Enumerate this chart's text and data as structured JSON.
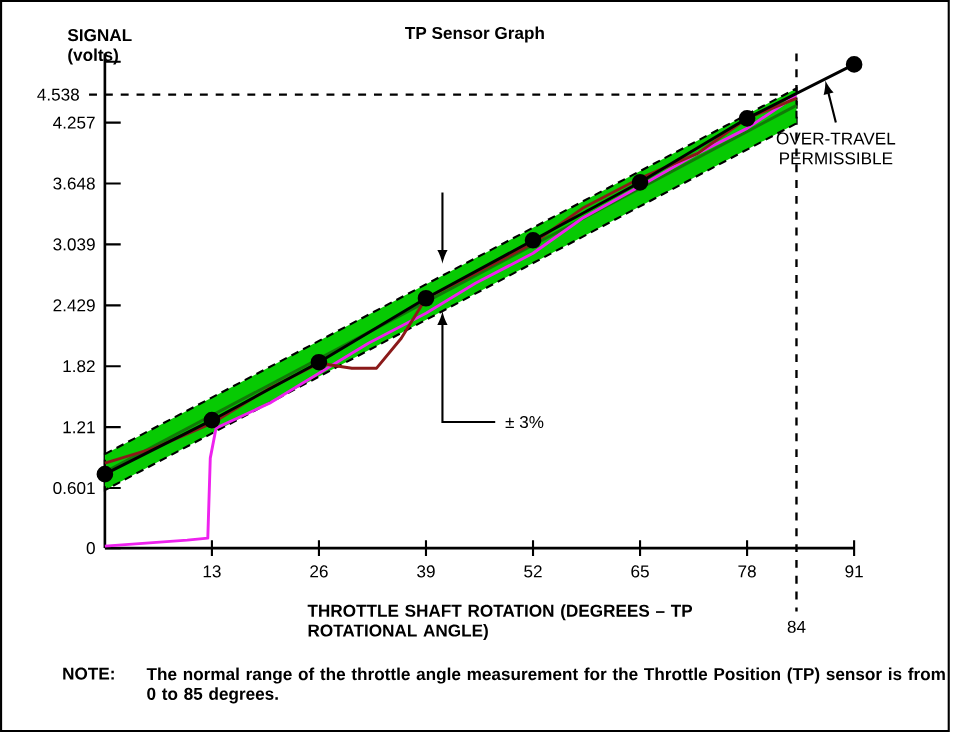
{
  "chart_data": {
    "type": "line",
    "title": "TP Sensor Graph",
    "xlabel": "THROTTLE SHAFT ROTATION (DEGREES – TP ROTATIONAL ANGLE)",
    "xlim": [
      0,
      91
    ],
    "ylim": [
      0,
      4.95
    ],
    "xticks": [
      13,
      26,
      39,
      52,
      65,
      78,
      91
    ],
    "yticks": [
      0,
      0.601,
      1.21,
      1.82,
      2.429,
      3.039,
      3.648,
      4.257,
      {
        "value": 4.866,
        "label": null
      }
    ],
    "ref_lines": [
      {
        "axis": "y",
        "value": 4.538,
        "label": "4.538",
        "line_style": "dashed"
      },
      {
        "axis": "x",
        "value": 84,
        "label": "84",
        "line_style": "dashed"
      }
    ],
    "series": [
      {
        "color": "#117a08",
        "x": [
          0,
          84
        ],
        "values": [
          0.76,
          4.43
        ],
        "lower": [
          0.58,
          4.25
        ],
        "upper": [
          0.94,
          4.6
        ]
      },
      {
        "color": "#ee22ee",
        "x": [
          0,
          5,
          10,
          12.5,
          12.8,
          13.5,
          20,
          26,
          32,
          39,
          45,
          52,
          58,
          65,
          72,
          78,
          84
        ],
        "values": [
          0.02,
          0.05,
          0.08,
          0.1,
          0.9,
          1.2,
          1.45,
          1.75,
          2.05,
          2.35,
          2.65,
          2.95,
          3.3,
          3.62,
          3.95,
          4.2,
          4.53
        ]
      },
      {
        "color": "#8b1a1a",
        "x": [
          0,
          6,
          13,
          20,
          26,
          30,
          33,
          36,
          39,
          45,
          52,
          58,
          65,
          72,
          78,
          84
        ],
        "values": [
          0.85,
          1.0,
          1.25,
          1.6,
          1.85,
          1.8,
          1.8,
          2.1,
          2.5,
          2.75,
          3.05,
          3.4,
          3.7,
          3.95,
          4.3,
          4.5
        ]
      },
      {
        "color": "#000000",
        "marker": "circle",
        "x": [
          0,
          13,
          26,
          39,
          52,
          65,
          78,
          91
        ],
        "values": [
          0.74,
          1.28,
          1.86,
          2.5,
          3.08,
          3.66,
          4.3,
          4.84
        ]
      }
    ],
    "annotations": [
      "SIGNAL (volts)",
      {
        "text": "± 3%",
        "x": 41,
        "y": 2.37
      },
      {
        "text": "OVER-TRAVEL PERMISSIBLE",
        "x": 87.5,
        "y": 4.68
      },
      "NOTE:",
      "The normal range of the throttle angle measurement for the Throttle Position (TP) sensor is from 0 to 85 degrees."
    ],
    "grid": false
  }
}
